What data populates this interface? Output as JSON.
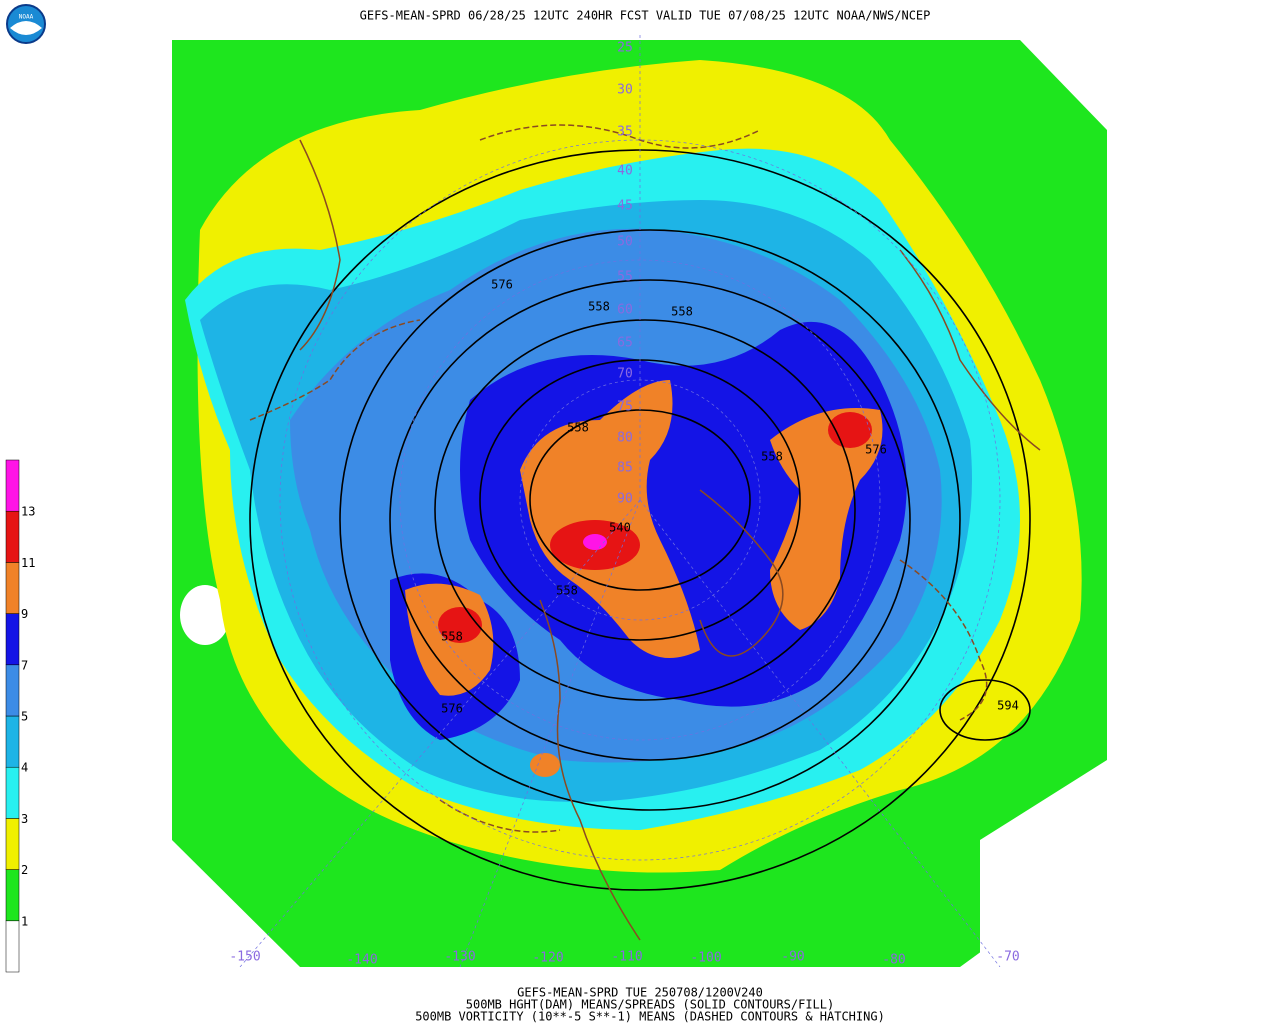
{
  "header": {
    "title": "GEFS-MEAN-SPRD 06/28/25 12UTC 240HR FCST VALID TUE 07/08/25 12UTC NOAA/NWS/NCEP",
    "logo_text": "NOAA"
  },
  "footer": {
    "lines": [
      "GEFS-MEAN-SPRD TUE 250708/1200V240",
      "500MB HGHT(DAM) MEANS/SPREADS (SOLID CONTOURS/FILL)",
      "500MB VORTICITY (10**-5 S**-1) MEANS (DASHED CONTOURS & HATCHING)"
    ]
  },
  "colorbar": {
    "labels": [
      1,
      2,
      3,
      4,
      5,
      7,
      9,
      11,
      13
    ],
    "colors": [
      "#ffffff",
      "#1ee61e",
      "#f0f000",
      "#28f0f0",
      "#1eb4e6",
      "#3c8ce6",
      "#1414e6",
      "#f08228",
      "#e61414",
      "#ff14e6"
    ]
  },
  "map": {
    "contour_labels": [
      576,
      558,
      558,
      558,
      558,
      576,
      540,
      558,
      558,
      576,
      594
    ],
    "latitude_labels": [
      25,
      30,
      35,
      40,
      45,
      50,
      55,
      60,
      65,
      70,
      75,
      80,
      85,
      90
    ],
    "longitude_labels": [
      -150,
      -140,
      -130,
      -120,
      -110,
      -100,
      -90,
      -80,
      -70
    ]
  }
}
